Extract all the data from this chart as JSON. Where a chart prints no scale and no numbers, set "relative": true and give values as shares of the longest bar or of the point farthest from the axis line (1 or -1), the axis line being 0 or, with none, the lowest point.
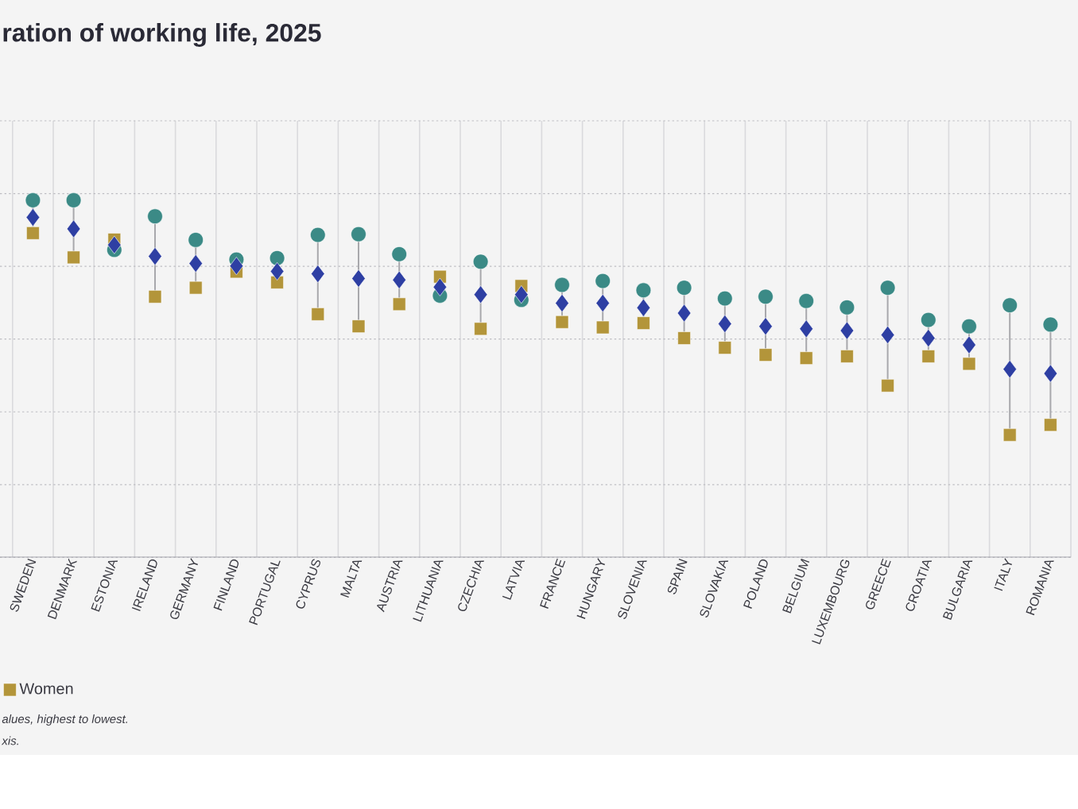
{
  "chart_data": {
    "type": "scatter",
    "title": "ration of working life, 2025",
    "relative": true,
    "grid": true,
    "legend": "bottom",
    "categories": [
      "SWEDEN",
      "DENMARK",
      "ESTONIA",
      "IRELAND",
      "GERMANY",
      "FINLAND",
      "PORTUGAL",
      "CYPRUS",
      "MALTA",
      "AUSTRIA",
      "LITHUANIA",
      "CZECHIA",
      "LATVIA",
      "FRANCE",
      "HUNGARY",
      "SLOVENIA",
      "SPAIN",
      "SLOVAKIA",
      "POLAND",
      "BELGIUM",
      "LUXEMBOURG",
      "GREECE",
      "CROATIA",
      "BULGARIA",
      "ITALY",
      "ROMANIA"
    ],
    "series": [
      {
        "color": "#3b8a86",
        "marker": "circle",
        "values": [
          1.0,
          1.0,
          0.861,
          0.955,
          0.889,
          0.834,
          0.838,
          0.903,
          0.905,
          0.849,
          0.733,
          0.828,
          0.721,
          0.763,
          0.774,
          0.748,
          0.755,
          0.725,
          0.73,
          0.718,
          0.7,
          0.755,
          0.665,
          0.647,
          0.706,
          0.652
        ]
      },
      {
        "name": "Women",
        "color": "#b3953a",
        "marker": "square",
        "values": [
          0.908,
          0.84,
          0.89,
          0.73,
          0.755,
          0.8,
          0.77,
          0.681,
          0.647,
          0.709,
          0.786,
          0.64,
          0.76,
          0.659,
          0.644,
          0.656,
          0.614,
          0.587,
          0.567,
          0.558,
          0.563,
          0.481,
          0.563,
          0.542,
          0.343,
          0.371
        ]
      },
      {
        "color": "#2e3fa3",
        "marker": "diamond",
        "values": [
          0.952,
          0.92,
          0.875,
          0.843,
          0.823,
          0.816,
          0.801,
          0.794,
          0.781,
          0.777,
          0.757,
          0.736,
          0.736,
          0.712,
          0.712,
          0.699,
          0.684,
          0.654,
          0.647,
          0.64,
          0.635,
          0.623,
          0.614,
          0.595,
          0.527,
          0.515
        ]
      }
    ],
    "annotations": [
      "alues, highest to lowest.",
      "xis."
    ]
  }
}
